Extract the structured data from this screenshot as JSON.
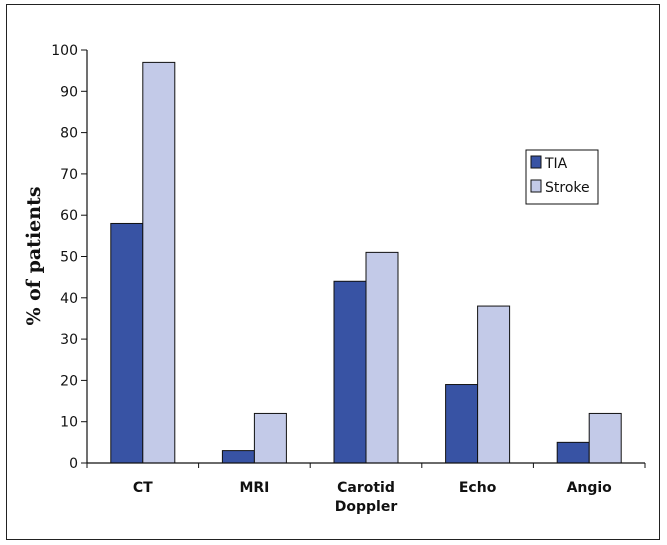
{
  "chart_data": {
    "type": "bar",
    "categories": [
      "CT",
      "MRI",
      "Carotid\nDoppler",
      "Echo",
      "Angio"
    ],
    "series": [
      {
        "name": "TIA",
        "values": [
          58,
          3,
          44,
          19,
          5
        ],
        "color": "#3853a4"
      },
      {
        "name": "Stroke",
        "values": [
          97,
          12,
          51,
          38,
          12
        ],
        "color": "#c3cae8"
      }
    ],
    "ylabel": "% of patients",
    "ylim": [
      0,
      100
    ],
    "yticks": [
      0,
      10,
      20,
      30,
      40,
      50,
      60,
      70,
      80,
      90,
      100
    ],
    "grid": false,
    "legend_position": "right",
    "edge_color": "#111111"
  }
}
